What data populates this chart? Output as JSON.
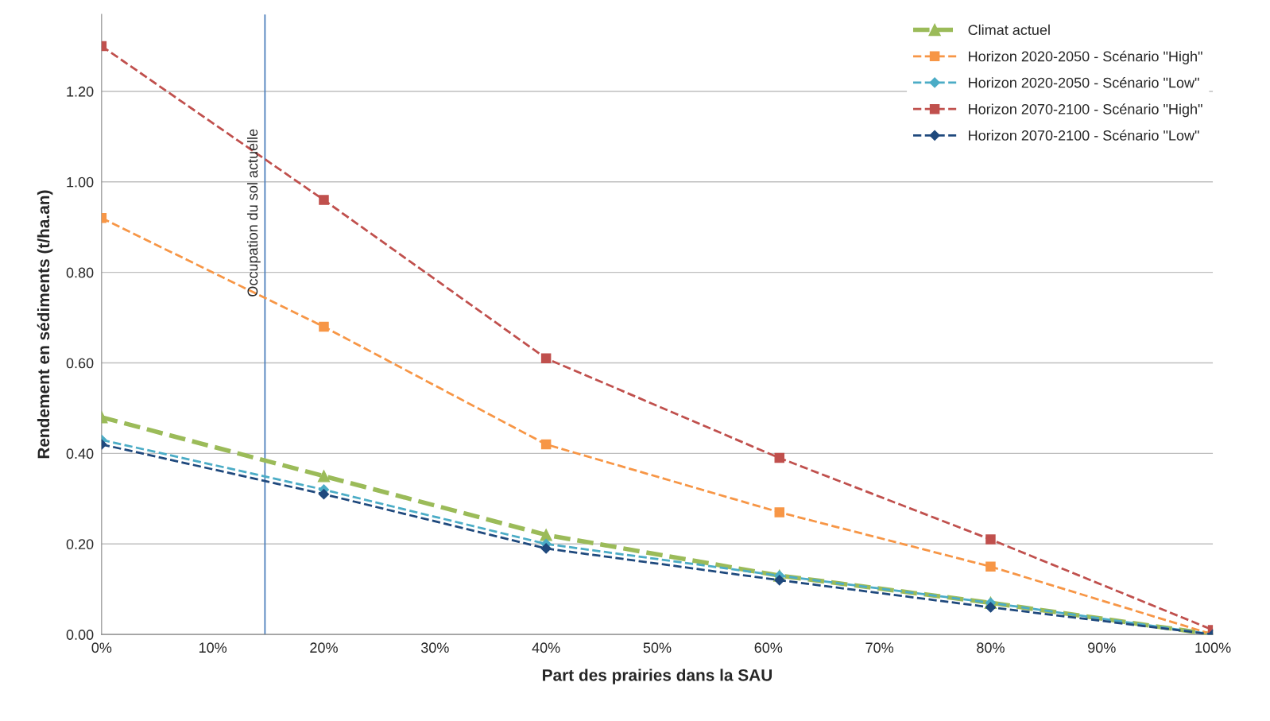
{
  "chart_data": {
    "type": "line",
    "xlabel": "Part des prairies dans la SAU",
    "ylabel": "Rendement en sédiments (t/ha.an)",
    "xlim": [
      0,
      100
    ],
    "xticks": [
      {
        "value": 0,
        "label": "0%"
      },
      {
        "value": 10,
        "label": "10%"
      },
      {
        "value": 20,
        "label": "20%"
      },
      {
        "value": 30,
        "label": "30%"
      },
      {
        "value": 40,
        "label": "40%"
      },
      {
        "value": 50,
        "label": "50%"
      },
      {
        "value": 60,
        "label": "60%"
      },
      {
        "value": 70,
        "label": "70%"
      },
      {
        "value": 80,
        "label": "80%"
      },
      {
        "value": 90,
        "label": "90%"
      },
      {
        "value": 100,
        "label": "100%"
      }
    ],
    "ylim": [
      0,
      1.37
    ],
    "yticks": [
      {
        "value": 0,
        "label": "0.00"
      },
      {
        "value": 0.2,
        "label": "0.20"
      },
      {
        "value": 0.4,
        "label": "0.40"
      },
      {
        "value": 0.6,
        "label": "0.60"
      },
      {
        "value": 0.8,
        "label": "0.80"
      },
      {
        "value": 1.0,
        "label": "1.00"
      },
      {
        "value": 1.2,
        "label": "1.20"
      }
    ],
    "x": [
      0,
      20,
      40,
      61,
      80,
      100
    ],
    "grid": "y",
    "legend": "top right",
    "line_style": "dashed",
    "series": [
      {
        "name": "Climat actuel",
        "color": "#9bbb59",
        "marker": "triangle",
        "values": [
          0.48,
          0.35,
          0.22,
          0.13,
          0.07,
          0.0
        ]
      },
      {
        "name": "Horizon 2020-2050 - Scénario \"High\"",
        "color": "#f79646",
        "marker": "square",
        "values": [
          0.92,
          0.68,
          0.42,
          0.27,
          0.15,
          0.0
        ]
      },
      {
        "name": "Horizon 2020-2050 - Scénario \"Low\"",
        "color": "#4bacc6",
        "marker": "diamond",
        "values": [
          0.43,
          0.32,
          0.2,
          0.13,
          0.07,
          0.0
        ]
      },
      {
        "name": "Horizon 2070-2100 - Scénario \"High\"",
        "color": "#c0504d",
        "marker": "square",
        "values": [
          1.3,
          0.96,
          0.61,
          0.39,
          0.21,
          0.01
        ]
      },
      {
        "name": "Horizon 2070-2100 - Scénario \"Low\"",
        "color": "#1f497d",
        "marker": "diamond",
        "values": [
          0.42,
          0.31,
          0.19,
          0.12,
          0.06,
          0.0
        ]
      }
    ],
    "ref_lines": [
      {
        "axis": "x",
        "value": 14.7,
        "label": "Occupation du sol actuelle",
        "color": "#4f81bd",
        "line_style": "solid"
      }
    ]
  }
}
